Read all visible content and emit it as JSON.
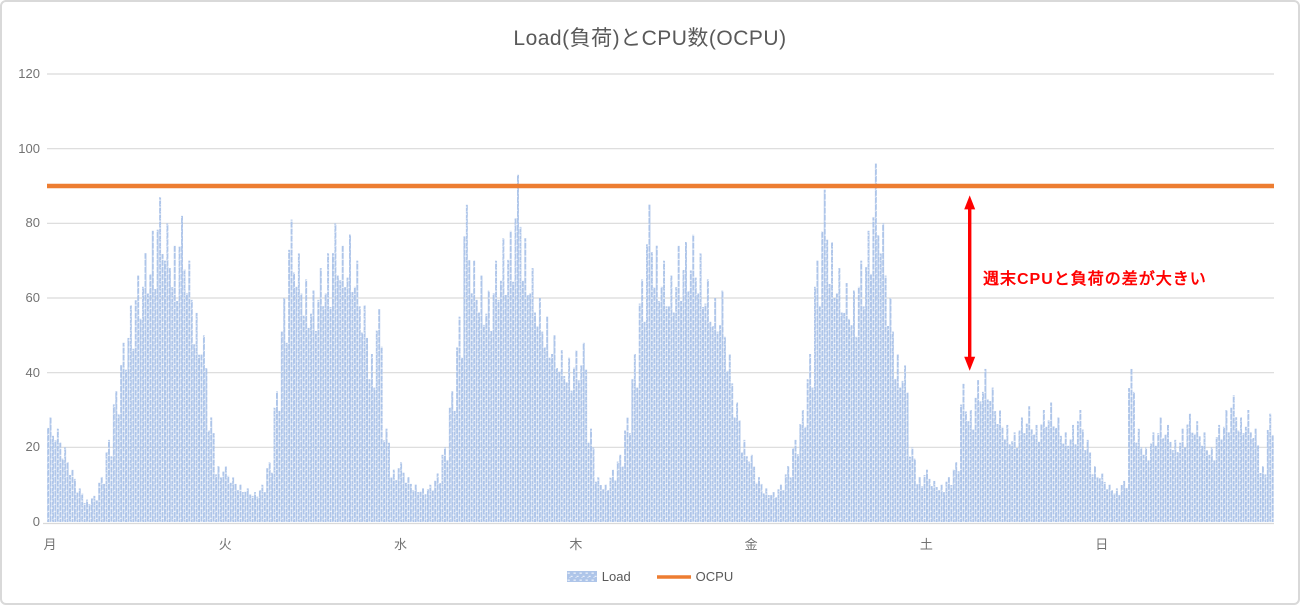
{
  "title": "Load(負荷)とCPU数(OCPU)",
  "legend": {
    "load_label": "Load",
    "ocpu_label": "OCPU"
  },
  "annotation": {
    "text": "週末CPUと負荷の差が大きい"
  },
  "colors": {
    "bar": "#AEC5E9",
    "ocpu_line": "#ED7D31",
    "annotation": "#FF0000",
    "grid": "#D9D9D9",
    "title_text": "#595959",
    "axis_text": "#737373"
  },
  "chart_data": {
    "type": "bar",
    "title": "Load(負荷)とCPU数(OCPU)",
    "categories": [
      "月",
      "火",
      "水",
      "木",
      "金",
      "土",
      "日"
    ],
    "points_per_day": 24,
    "ylim": [
      0,
      120
    ],
    "yticks": [
      0,
      20,
      40,
      60,
      80,
      100,
      120
    ],
    "grid": true,
    "legend_position": "bottom",
    "series": [
      {
        "name": "Load",
        "type": "bar",
        "values": [
          28,
          25,
          20,
          14,
          9,
          6,
          7,
          12,
          22,
          35,
          48,
          58,
          66,
          72,
          78,
          87,
          80,
          74,
          82,
          70,
          56,
          50,
          28,
          15,
          15,
          12,
          10,
          9,
          8,
          10,
          16,
          35,
          60,
          81,
          72,
          65,
          62,
          68,
          72,
          80,
          74,
          77,
          70,
          58,
          45,
          57,
          25,
          14,
          16,
          12,
          10,
          9,
          10,
          13,
          20,
          35,
          55,
          85,
          70,
          66,
          62,
          70,
          76,
          78,
          93,
          76,
          68,
          60,
          55,
          50,
          46,
          44,
          46,
          48,
          25,
          12,
          10,
          14,
          18,
          28,
          45,
          65,
          85,
          74,
          70,
          66,
          74,
          75,
          77,
          72,
          65,
          60,
          62,
          45,
          32,
          22,
          18,
          12,
          9,
          8,
          10,
          15,
          22,
          30,
          45,
          70,
          89,
          75,
          68,
          64,
          62,
          70,
          78,
          96,
          80,
          60,
          45,
          42,
          20,
          12,
          14,
          11,
          10,
          12,
          16,
          37,
          30,
          38,
          41,
          36,
          30,
          26,
          24,
          28,
          31,
          26,
          30,
          32,
          28,
          24,
          26,
          30,
          22,
          15,
          13,
          10,
          9,
          11,
          41,
          25,
          20,
          24,
          28,
          26,
          22,
          25,
          29,
          27,
          24,
          20,
          26,
          30,
          34,
          28,
          30,
          25,
          15,
          29
        ]
      },
      {
        "name": "OCPU",
        "type": "line",
        "constant_value": 90
      }
    ],
    "annotations": [
      {
        "type": "double-arrow",
        "text": "週末CPUと負荷の差が大きい",
        "x_fraction": 0.752,
        "y_bottom_value": 40.5,
        "y_top_value": 87.5
      }
    ]
  }
}
